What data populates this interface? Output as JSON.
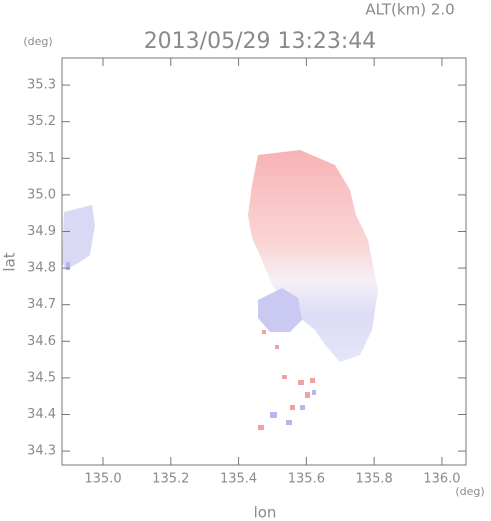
{
  "chart_data": {
    "type": "image",
    "title": "2013/05/29 13:23:44",
    "annotation": "ALT(km)  2.0",
    "y_unit": "(deg)",
    "x_unit": "(deg)",
    "x_label": "lon",
    "y_label": "lat",
    "xlim": [
      134.879,
      136.071
    ],
    "ylim": [
      34.262,
      35.374
    ],
    "xticks": [
      {
        "value": 135.0,
        "label": "135.0"
      },
      135.2,
      135.4,
      135.6,
      135.8,
      {
        "value": 136.0,
        "label": "136.0"
      }
    ],
    "yticks": [
      34.3,
      34.4,
      34.5,
      34.6,
      34.7,
      34.8,
      34.9,
      {
        "value": 35.0,
        "label": "35.0"
      },
      35.1,
      35.2,
      35.3
    ]
  }
}
